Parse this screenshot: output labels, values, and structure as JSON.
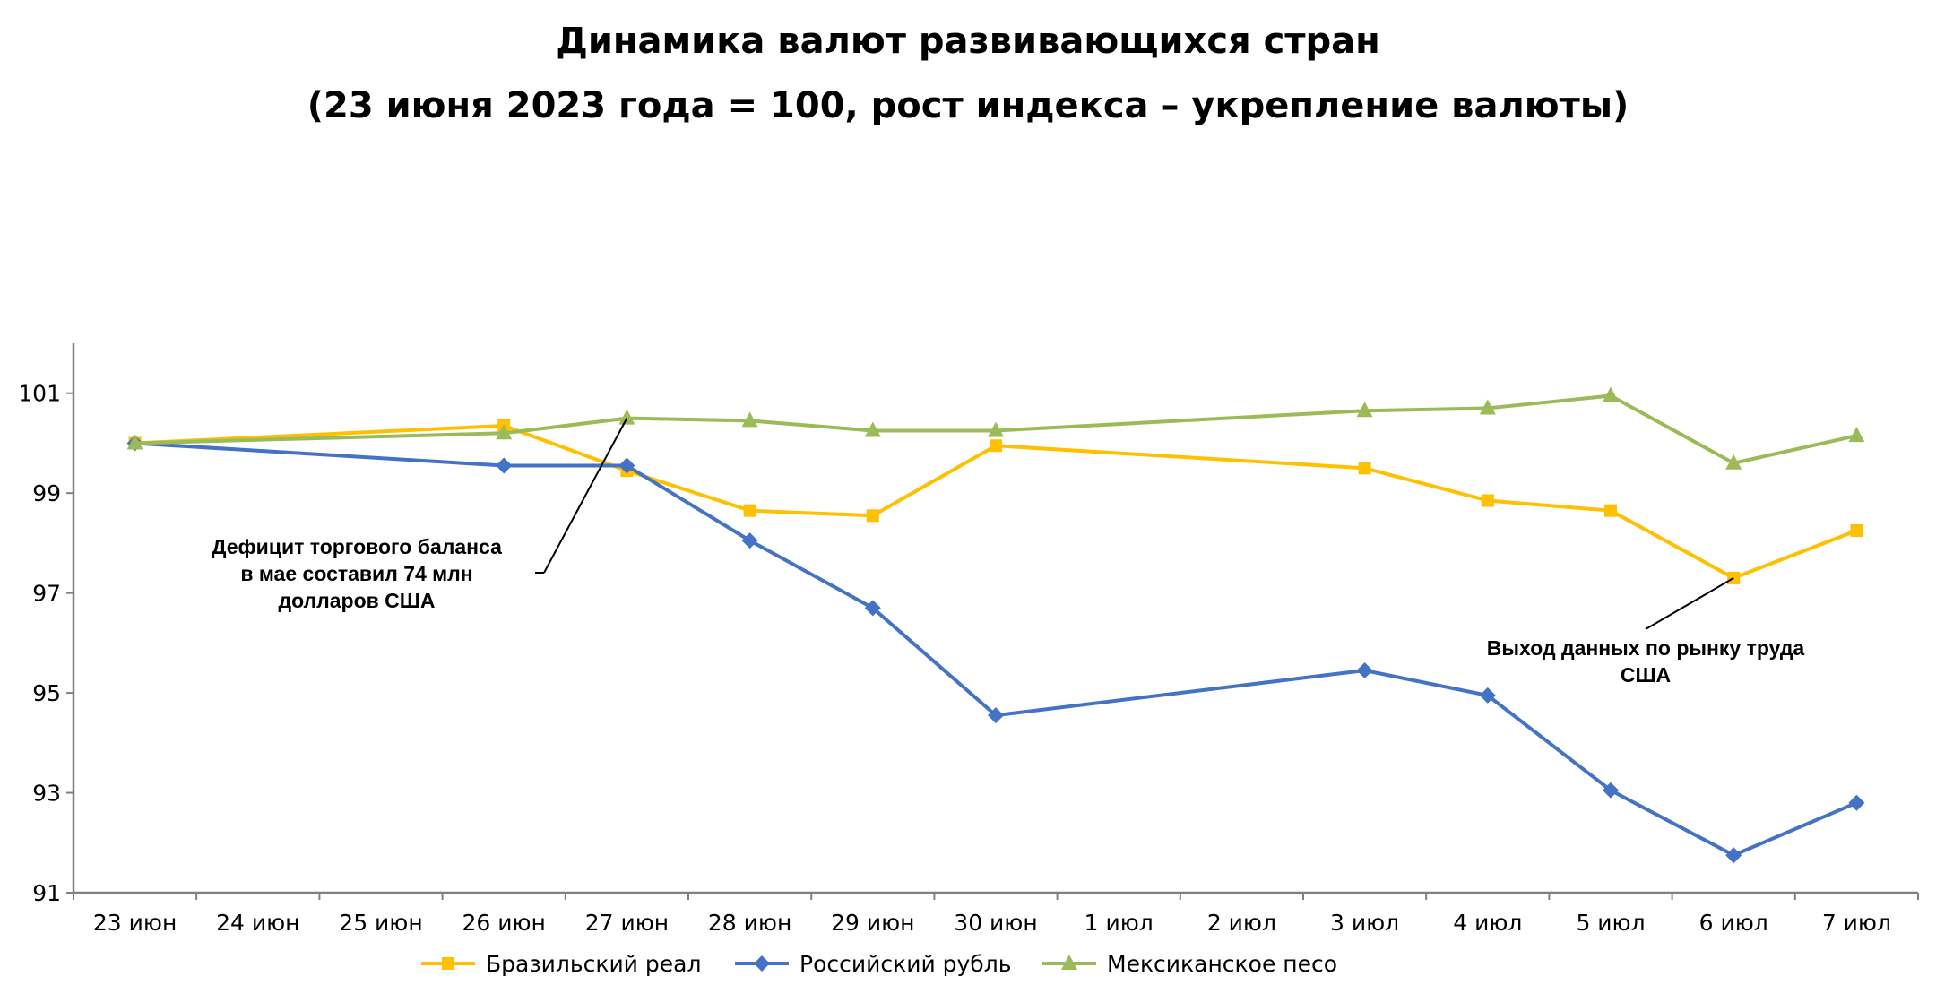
{
  "chart_data": {
    "type": "line",
    "title": "Динамика валют развивающихся стран",
    "subtitle": "(23 июня 2023 года = 100, рост индекса – укрепление валюты)",
    "x": [
      "23 июн",
      "24 июн",
      "25 июн",
      "26 июн",
      "27 июн",
      "28 июн",
      "29 июн",
      "30 июн",
      "1 июл",
      "2 июл",
      "3 июл",
      "4 июл",
      "5 июл",
      "6 июл",
      "7 июл"
    ],
    "yticks": [
      "91",
      "93",
      "95",
      "97",
      "99",
      "101"
    ],
    "ylim": [
      91,
      102
    ],
    "grid": false,
    "legend_position": "bottom",
    "series": [
      {
        "name": "Бразильский реал",
        "color": "#FFC000",
        "marker": "square",
        "values": [
          100.0,
          null,
          null,
          100.35,
          99.45,
          98.65,
          98.55,
          99.95,
          null,
          null,
          99.5,
          98.85,
          98.65,
          97.3,
          98.25
        ]
      },
      {
        "name": "Российский рубль",
        "color": "#4472C4",
        "marker": "diamond",
        "values": [
          100.0,
          null,
          null,
          99.55,
          99.55,
          98.05,
          96.7,
          94.55,
          null,
          null,
          95.45,
          94.95,
          93.05,
          91.75,
          92.8
        ]
      },
      {
        "name": "Мексиканское песо",
        "color": "#9BBB59",
        "marker": "triangle",
        "values": [
          100.0,
          null,
          null,
          100.2,
          100.5,
          100.45,
          100.25,
          100.25,
          null,
          null,
          100.65,
          100.7,
          100.95,
          99.6,
          100.15
        ]
      }
    ],
    "annotations": [
      {
        "lines": [
          "Дефицит торгового баланса",
          "в мае составил 74 млн",
          "долларов США"
        ],
        "points_to": {
          "x": "27 июн",
          "y": 100.5
        }
      },
      {
        "lines": [
          "Выход данных по рынку труда",
          "США"
        ],
        "points_to": {
          "x": "6 июл",
          "y": 97.3
        }
      }
    ]
  }
}
